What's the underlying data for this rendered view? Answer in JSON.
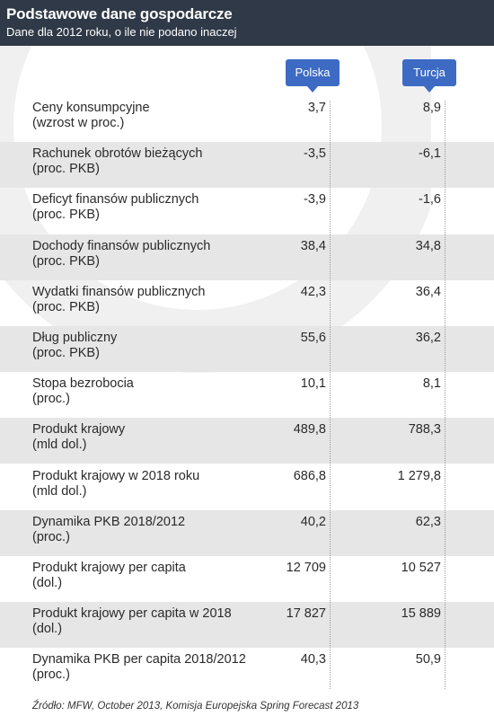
{
  "header": {
    "title": "Podstawowe dane gospodarcze",
    "subtitle": "Dane dla 2012 roku, o ile nie podano inaczej"
  },
  "columns": [
    "Polska",
    "Turcja"
  ],
  "source": "Źródło:  MFW, October 2013, Komisja Europejska Spring Forecast 2013",
  "colors": {
    "header_bg": "#2f3947",
    "badge": "#3d6bc4",
    "row_shade": "#e6e6e6"
  },
  "chart_data": {
    "type": "table",
    "title": "Podstawowe dane gospodarcze",
    "subtitle": "Dane dla 2012 roku, o ile nie podano inaczej",
    "columns": [
      "Polska",
      "Turcja"
    ],
    "rows": [
      {
        "label1": "Ceny konsumpcyjne",
        "label2": "(wzrost w proc.)",
        "values": [
          "3,7",
          "8,9"
        ]
      },
      {
        "label1": "Rachunek obrotów bieżących",
        "label2": "(proc. PKB)",
        "values": [
          "-3,5",
          "-6,1"
        ]
      },
      {
        "label1": "Deficyt finansów publicznych",
        "label2": "(proc. PKB)",
        "values": [
          "-3,9",
          "-1,6"
        ]
      },
      {
        "label1": "Dochody finansów publicznych",
        "label2": "(proc. PKB)",
        "values": [
          "38,4",
          "34,8"
        ]
      },
      {
        "label1": "Wydatki finansów publicznych",
        "label2": "(proc. PKB)",
        "values": [
          "42,3",
          "36,4"
        ]
      },
      {
        "label1": "Dług publiczny",
        "label2": "(proc. PKB)",
        "values": [
          "55,6",
          "36,2"
        ]
      },
      {
        "label1": "Stopa bezrobocia",
        "label2": "(proc.)",
        "values": [
          "10,1",
          "8,1"
        ]
      },
      {
        "label1": "Produkt krajowy",
        "label2": "(mld dol.)",
        "values": [
          "489,8",
          "788,3"
        ]
      },
      {
        "label1": "Produkt krajowy w 2018 roku",
        "label2": "(mld dol.)",
        "values": [
          "686,8",
          "1 279,8"
        ]
      },
      {
        "label1": "Dynamika PKB 2018/2012",
        "label2": "(proc.)",
        "values": [
          "40,2",
          "62,3"
        ]
      },
      {
        "label1": "Produkt krajowy per capita",
        "label2": "(dol.)",
        "values": [
          "12 709",
          "10 527"
        ]
      },
      {
        "label1": "Produkt krajowy per capita w 2018",
        "label2": "(dol.)",
        "values": [
          "17 827",
          "15 889"
        ]
      },
      {
        "label1": "Dynamika PKB per capita  2018/2012",
        "label2": "(proc.)",
        "values": [
          "40,3",
          "50,9"
        ]
      }
    ]
  }
}
